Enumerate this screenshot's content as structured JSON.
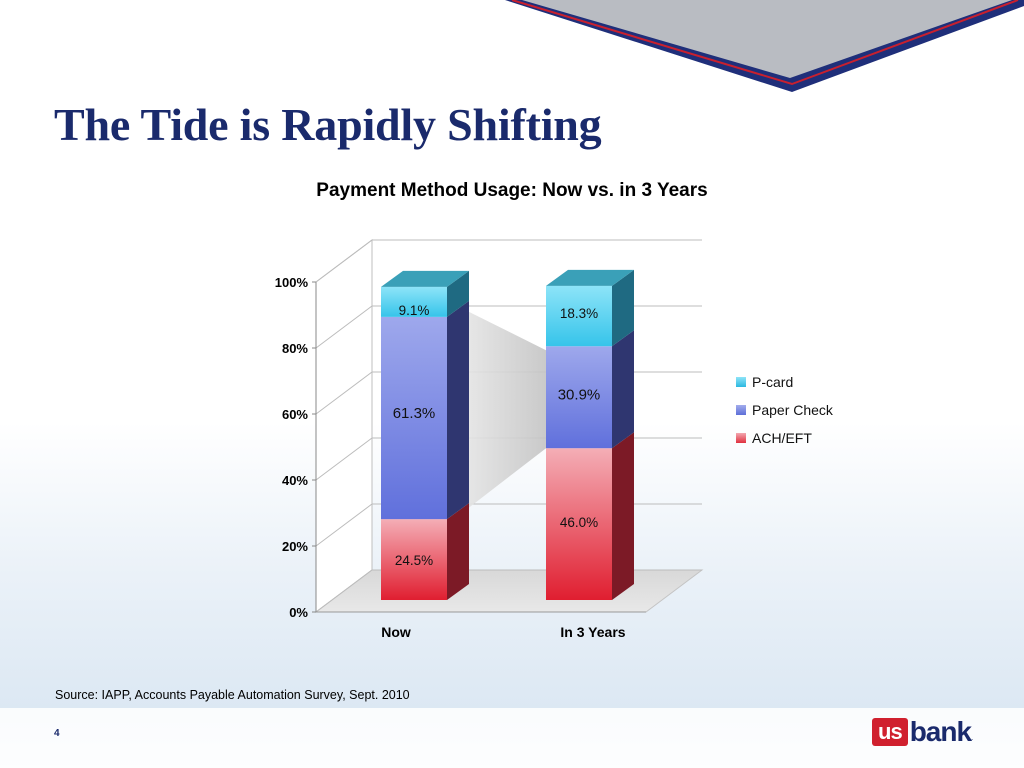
{
  "slide": {
    "title": "The Tide is Rapidly Shifting",
    "source": "Source: IAPP, Accounts Payable Automation Survey, Sept. 2010",
    "page_number": "4",
    "logo": {
      "part1": "us",
      "part2": "bank",
      "trademark": "."
    }
  },
  "colors": {
    "title": "#1a2a6c",
    "banner_gray": "#b9bcc2",
    "banner_navy": "#1f2f7a",
    "banner_red": "#c8202e",
    "p_card": "#4fd0f0",
    "paper_check": "#7484e0",
    "ach_eft": "#e84a5a"
  },
  "chart_data": {
    "type": "bar",
    "stacked": true,
    "three_d": true,
    "title": "Payment Method Usage: Now vs. in 3 Years",
    "categories": [
      "Now",
      "In 3 Years"
    ],
    "series": [
      {
        "name": "ACH/EFT",
        "values": [
          24.5,
          46.0
        ],
        "labels": [
          "24.5%",
          "46.0%"
        ],
        "color": "#e84a5a"
      },
      {
        "name": "Paper Check",
        "values": [
          61.3,
          30.9
        ],
        "labels": [
          "61.3%",
          "30.9%"
        ],
        "color": "#7484e0"
      },
      {
        "name": "P-card",
        "values": [
          9.1,
          18.3
        ],
        "labels": [
          "9.1%",
          "18.3%"
        ],
        "color": "#4fd0f0"
      }
    ],
    "y_ticks": [
      "0%",
      "20%",
      "40%",
      "60%",
      "80%",
      "100%"
    ],
    "ylim": [
      0,
      100
    ],
    "grid": true,
    "legend_position": "right",
    "legend_order": [
      "P-card",
      "Paper Check",
      "ACH/EFT"
    ]
  }
}
